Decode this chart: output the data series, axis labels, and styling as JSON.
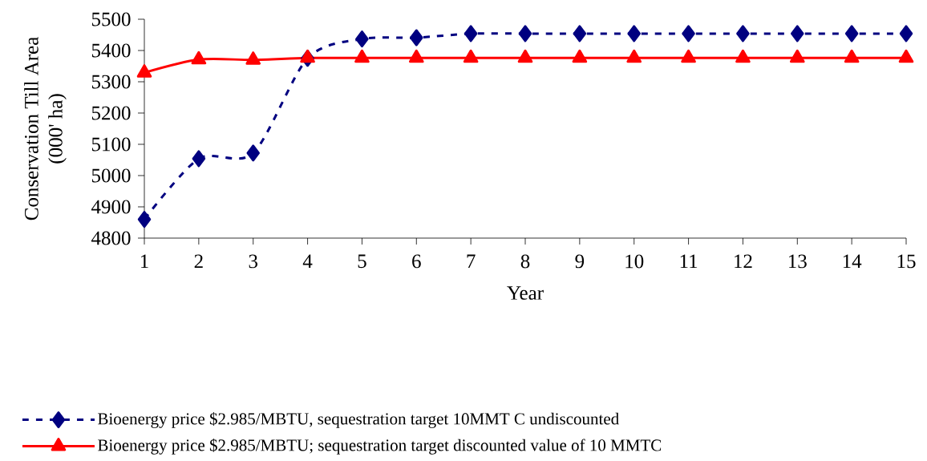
{
  "chart_data": {
    "type": "line",
    "xlabel": "Year",
    "ylabel": "Conservation Till Area (000' ha)",
    "categories": [
      "1",
      "2",
      "3",
      "4",
      "5",
      "6",
      "7",
      "8",
      "9",
      "10",
      "11",
      "12",
      "13",
      "14",
      "15"
    ],
    "series": [
      {
        "name": "Bioenergy price $2.985/MBTU, sequestration target 10MMT C undiscounted",
        "color": "#000080",
        "marker": "diamond",
        "line_style": "dashed",
        "values": [
          4860,
          5054,
          5072,
          5375,
          5437,
          5441,
          5454,
          5454,
          5454,
          5454,
          5454,
          5454,
          5454,
          5454,
          5454
        ]
      },
      {
        "name": "Bioenergy price $2.985/MBTU; sequestration target discounted value of 10 MMTC",
        "color": "#ff0000",
        "marker": "triangle",
        "line_style": "solid",
        "values": [
          5329,
          5371,
          5370,
          5376,
          5376,
          5376,
          5376,
          5376,
          5376,
          5376,
          5376,
          5376,
          5376,
          5376,
          5376
        ]
      }
    ],
    "ylim": [
      4800,
      5500
    ],
    "yticks": [
      4800,
      4900,
      5000,
      5100,
      5200,
      5300,
      5400,
      5500
    ],
    "grid": false,
    "legend": "bottom"
  }
}
